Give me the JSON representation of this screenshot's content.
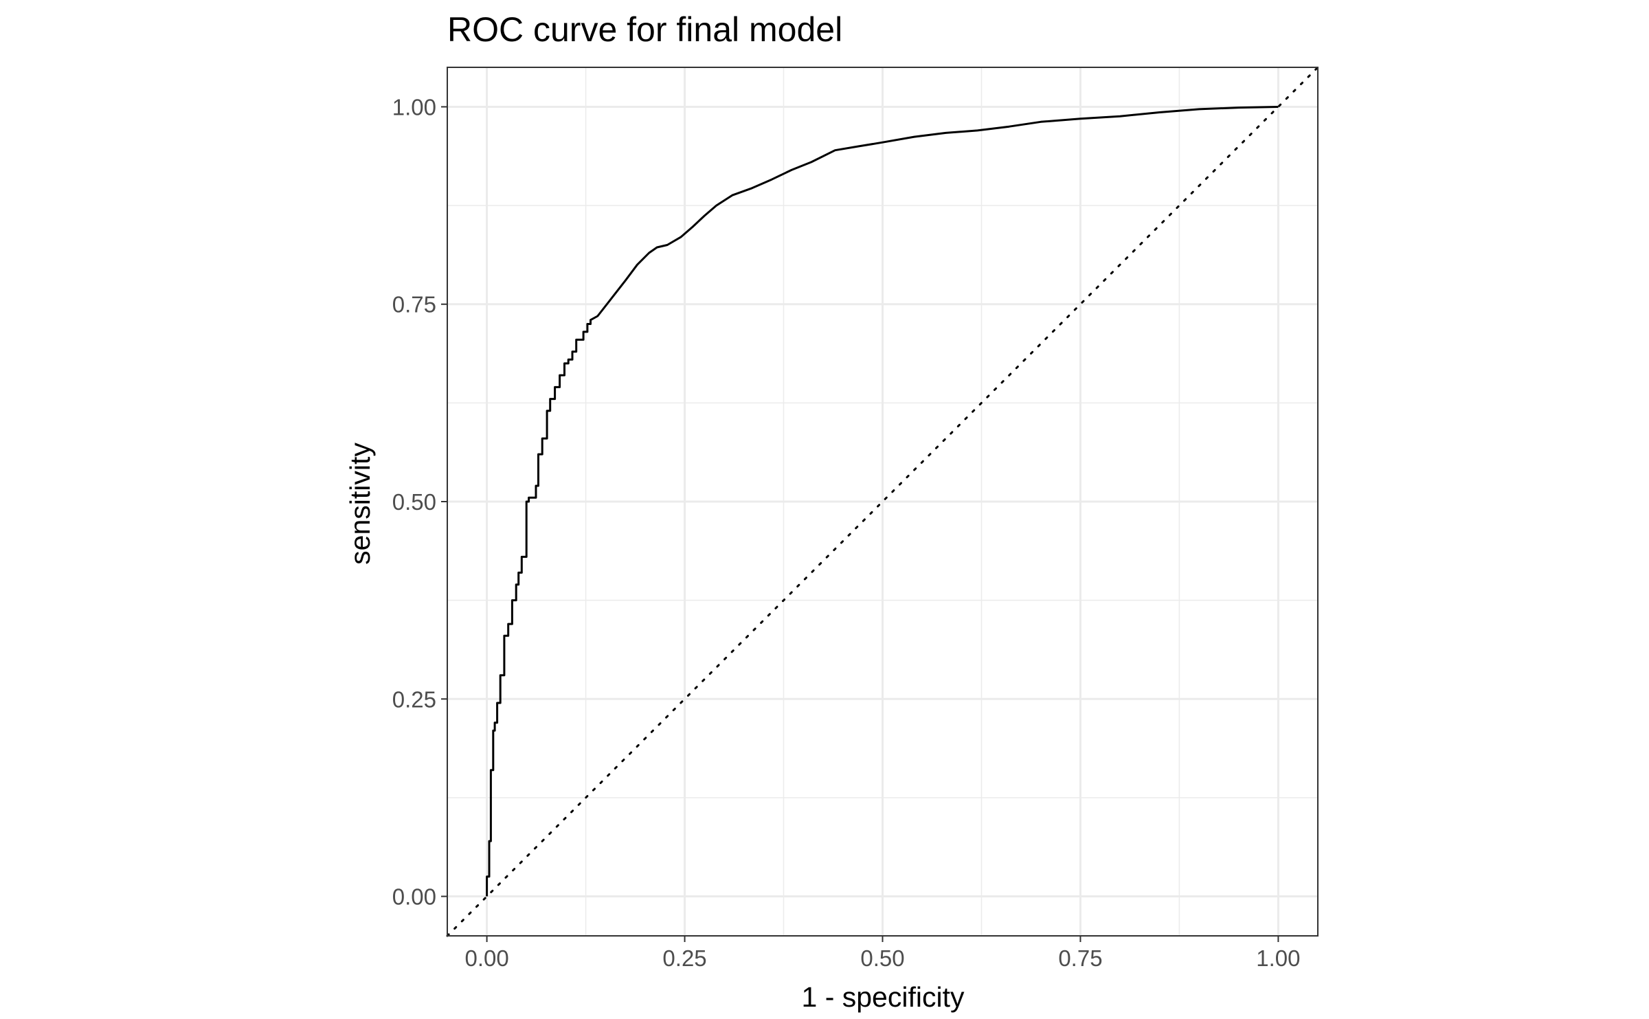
{
  "chart_data": {
    "type": "line",
    "title": "ROC curve for final model",
    "xlabel": "1 - specificity",
    "ylabel": "sensitivity",
    "xlim": [
      -0.05,
      1.05
    ],
    "ylim": [
      -0.05,
      1.05
    ],
    "x_ticks": [
      0,
      0.25,
      0.5,
      0.75,
      1
    ],
    "y_ticks": [
      0,
      0.25,
      0.5,
      0.75,
      1
    ],
    "x_tick_labels": [
      "0.00",
      "0.25",
      "0.50",
      "0.75",
      "1.00"
    ],
    "y_tick_labels": [
      "0.00",
      "0.25",
      "0.50",
      "0.75",
      "1.00"
    ],
    "grid": true,
    "line_color": "#000000",
    "grid_color": "#ebebeb",
    "panel_border_color": "#333333",
    "series": [
      {
        "style": "solid",
        "x": [
          0.0,
          0.0,
          0.003,
          0.003,
          0.005,
          0.005,
          0.008,
          0.008,
          0.01,
          0.01,
          0.013,
          0.013,
          0.017,
          0.017,
          0.022,
          0.022,
          0.027,
          0.027,
          0.032,
          0.032,
          0.037,
          0.037,
          0.04,
          0.04,
          0.044,
          0.044,
          0.05,
          0.05,
          0.053,
          0.053,
          0.062,
          0.062,
          0.065,
          0.065,
          0.07,
          0.07,
          0.076,
          0.076,
          0.08,
          0.08,
          0.086,
          0.086,
          0.092,
          0.092,
          0.098,
          0.098,
          0.103,
          0.103,
          0.108,
          0.108,
          0.113,
          0.113,
          0.122,
          0.122,
          0.127,
          0.127,
          0.131,
          0.131,
          0.14,
          0.175,
          0.19,
          0.205,
          0.215,
          0.228,
          0.245,
          0.26,
          0.275,
          0.29,
          0.31,
          0.335,
          0.36,
          0.385,
          0.41,
          0.44,
          0.47,
          0.5,
          0.54,
          0.58,
          0.62,
          0.66,
          0.7,
          0.75,
          0.8,
          0.85,
          0.9,
          0.95,
          1.0
        ],
        "y": [
          0.0,
          0.025,
          0.025,
          0.07,
          0.07,
          0.16,
          0.16,
          0.21,
          0.21,
          0.22,
          0.22,
          0.245,
          0.245,
          0.28,
          0.28,
          0.33,
          0.33,
          0.345,
          0.345,
          0.375,
          0.375,
          0.395,
          0.395,
          0.41,
          0.41,
          0.43,
          0.43,
          0.5,
          0.5,
          0.505,
          0.505,
          0.52,
          0.52,
          0.56,
          0.56,
          0.58,
          0.58,
          0.615,
          0.615,
          0.63,
          0.63,
          0.645,
          0.645,
          0.66,
          0.66,
          0.675,
          0.675,
          0.68,
          0.68,
          0.69,
          0.69,
          0.705,
          0.705,
          0.715,
          0.715,
          0.725,
          0.725,
          0.73,
          0.735,
          0.78,
          0.8,
          0.815,
          0.822,
          0.825,
          0.835,
          0.848,
          0.862,
          0.875,
          0.888,
          0.897,
          0.908,
          0.92,
          0.93,
          0.945,
          0.95,
          0.955,
          0.962,
          0.967,
          0.97,
          0.975,
          0.981,
          0.985,
          0.988,
          0.993,
          0.997,
          0.999,
          1.0
        ]
      },
      {
        "style": "dotted",
        "x": [
          -0.05,
          1.05
        ],
        "y": [
          -0.05,
          1.05
        ]
      }
    ]
  }
}
